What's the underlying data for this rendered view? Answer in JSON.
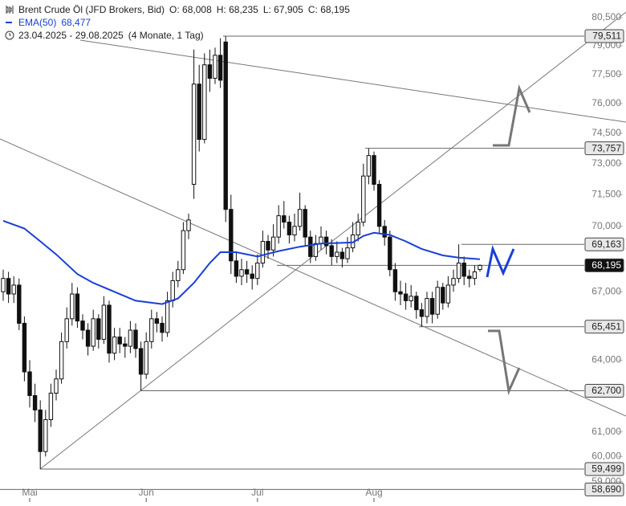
{
  "chart_data": {
    "type": "candlestick",
    "title": "Brent Crude Öl (JFD Brokers, Bid)",
    "header_fields": [
      "O: 68,008",
      "H: 68,235",
      "L: 67,905",
      "C: 68,195"
    ],
    "range": "23.04.2025 - 29.08.2025",
    "range_note": "(4 Monate, 1 Tag)",
    "up_color": "#ffffff",
    "down_color": "#111111",
    "log_scale": true,
    "ylim": [
      58.2,
      81.46
    ],
    "yticks": [
      {
        "value": 80.5,
        "label": "80,500"
      },
      {
        "value": 79,
        "label": "79,000"
      },
      {
        "value": 77.5,
        "label": "77,500"
      },
      {
        "value": 76,
        "label": "76,000"
      },
      {
        "value": 74.5,
        "label": "74,500"
      },
      {
        "value": 73,
        "label": "73,000"
      },
      {
        "value": 71.5,
        "label": "71,500"
      },
      {
        "value": 70,
        "label": "70,000"
      },
      {
        "value": 67,
        "label": "67,000"
      },
      {
        "value": 64,
        "label": "64,000"
      },
      {
        "value": 61,
        "label": "61,000"
      },
      {
        "value": 60,
        "label": "60,000"
      },
      {
        "value": 59,
        "label": "59,000"
      }
    ],
    "xticks": [
      {
        "value": 5,
        "label": "Mai"
      },
      {
        "value": 27,
        "label": "Jun"
      },
      {
        "value": 48,
        "label": "Jul"
      },
      {
        "value": 70,
        "label": "Aug"
      }
    ],
    "open": [
      67.0,
      67.6,
      66.9,
      67.3,
      65.6,
      63.5,
      62.5,
      61.9,
      60.2,
      61.5,
      62.6,
      63.2,
      64.8,
      65.8,
      66.9,
      65.7,
      65.3,
      64.6,
      65.8,
      64.9,
      66.4,
      64.3,
      65.0,
      64.7,
      64.6,
      65.3,
      64.5,
      63.4,
      64.8,
      65.8,
      65.6,
      65.2,
      66.6,
      67.5,
      68.0,
      69.8,
      72.0,
      77.0,
      74.2,
      78.0,
      77.3,
      78.5,
      79.2,
      70.8,
      68.4,
      67.7,
      68.0,
      67.8,
      67.6,
      68.3,
      69.3,
      68.9,
      69.5,
      70.5,
      70.2,
      69.6,
      70.0,
      70.8,
      69.5,
      68.6,
      69.2,
      69.5,
      69.1,
      68.6,
      68.8,
      68.5,
      69.0,
      69.6,
      70.2,
      72.4,
      73.4,
      72.0,
      70.0,
      69.5,
      68.0,
      67.0,
      66.9,
      66.6,
      66.8,
      66.2,
      65.9,
      66.7,
      66.0,
      67.2,
      66.5,
      67.3,
      67.6,
      68.3,
      67.7,
      67.6,
      68.008
    ],
    "high": [
      68.0,
      67.9,
      67.7,
      67.6,
      65.9,
      64.0,
      63.0,
      62.3,
      61.9,
      63.0,
      63.6,
      65.2,
      66.3,
      67.4,
      67.2,
      66.0,
      65.6,
      66.2,
      66.0,
      66.8,
      66.6,
      65.4,
      65.4,
      65.0,
      65.7,
      65.6,
      64.8,
      65.2,
      66.2,
      66.1,
      65.9,
      67.0,
      67.9,
      68.4,
      70.2,
      70.6,
      78.8,
      78.0,
      78.6,
      78.8,
      78.9,
      79.4,
      79.511,
      71.5,
      68.8,
      68.5,
      68.4,
      68.2,
      68.7,
      69.8,
      69.6,
      70.1,
      71.0,
      71.2,
      70.5,
      70.6,
      71.6,
      71.0,
      69.8,
      69.6,
      70.0,
      69.8,
      69.4,
      69.3,
      69.0,
      69.5,
      70.2,
      70.6,
      73.0,
      73.757,
      73.6,
      72.2,
      70.3,
      69.8,
      68.3,
      67.5,
      67.4,
      67.3,
      67.0,
      66.5,
      67.0,
      67.0,
      67.5,
      67.4,
      67.7,
      68.0,
      69.163,
      68.6,
      68.0,
      68.2,
      68.235
    ],
    "low": [
      66.6,
      66.5,
      66.5,
      65.3,
      63.1,
      62.0,
      61.4,
      59.5,
      60.0,
      61.2,
      62.3,
      63.0,
      64.5,
      65.5,
      65.4,
      64.9,
      64.2,
      64.4,
      64.5,
      64.7,
      63.9,
      64.0,
      64.3,
      64.1,
      64.3,
      64.1,
      62.7,
      63.2,
      64.5,
      65.2,
      64.8,
      65.0,
      66.3,
      67.2,
      67.8,
      69.4,
      71.3,
      73.6,
      74.0,
      76.6,
      77.0,
      76.8,
      70.2,
      67.8,
      67.4,
      67.3,
      67.4,
      67.1,
      67.3,
      68.1,
      68.5,
      68.6,
      69.2,
      69.9,
      69.2,
      69.3,
      69.8,
      69.1,
      68.3,
      68.4,
      68.9,
      68.7,
      68.2,
      68.3,
      68.1,
      68.3,
      68.8,
      69.3,
      70.0,
      72.0,
      71.7,
      69.7,
      69.1,
      67.7,
      66.6,
      66.4,
      66.2,
      66.3,
      65.8,
      65.451,
      65.6,
      65.6,
      65.8,
      66.2,
      66.3,
      67.0,
      67.4,
      67.3,
      67.2,
      67.3,
      67.905
    ],
    "close": [
      67.6,
      66.9,
      67.3,
      65.6,
      63.5,
      62.5,
      61.9,
      60.2,
      61.5,
      62.6,
      63.2,
      64.8,
      65.8,
      66.9,
      65.7,
      65.3,
      64.6,
      65.8,
      64.9,
      66.4,
      64.3,
      65.0,
      64.7,
      64.6,
      65.3,
      64.5,
      63.4,
      64.8,
      65.8,
      65.6,
      65.2,
      66.6,
      67.5,
      68.0,
      69.8,
      70.3,
      77.0,
      74.2,
      78.0,
      77.3,
      78.5,
      77.2,
      70.8,
      68.4,
      67.7,
      68.0,
      67.8,
      67.6,
      68.3,
      69.3,
      68.9,
      69.5,
      70.5,
      70.2,
      69.6,
      70.0,
      70.8,
      69.5,
      68.6,
      69.2,
      69.5,
      69.1,
      68.6,
      68.8,
      68.5,
      69.0,
      69.6,
      70.2,
      72.4,
      73.4,
      72.0,
      70.0,
      69.5,
      68.0,
      67.0,
      66.9,
      66.6,
      66.8,
      66.2,
      65.9,
      66.7,
      66.0,
      67.2,
      66.5,
      67.3,
      67.6,
      68.3,
      67.7,
      67.6,
      67.9,
      68.195
    ],
    "ema": {
      "name": "EMA(50)",
      "color": "#1a3fd6",
      "legend_value": "68,477",
      "x": [
        0,
        4,
        7,
        10,
        14,
        17,
        21,
        25,
        30,
        33,
        36,
        39,
        41,
        44,
        48,
        52,
        56,
        60,
        66,
        68,
        70,
        73,
        76,
        79,
        83,
        86,
        90
      ],
      "values": [
        70.26,
        69.9,
        69.3,
        68.7,
        67.8,
        67.4,
        67.0,
        66.6,
        66.45,
        66.7,
        67.4,
        68.3,
        68.8,
        68.8,
        68.6,
        68.85,
        69.05,
        69.2,
        69.25,
        69.55,
        69.7,
        69.6,
        69.3,
        68.95,
        68.65,
        68.55,
        68.477
      ]
    },
    "levels": [
      {
        "value": 79.511,
        "label": "79,511"
      },
      {
        "value": 73.757,
        "label": "73,757"
      },
      {
        "value": 69.163,
        "label": "69,163"
      },
      {
        "value": 68.195,
        "label": "68,195",
        "highlight": true
      },
      {
        "value": 65.451,
        "label": "65,451"
      },
      {
        "value": 62.7,
        "label": "62,700"
      },
      {
        "value": 59.499,
        "label": "59,499"
      },
      {
        "value": 58.69,
        "label": "58,690"
      }
    ]
  }
}
